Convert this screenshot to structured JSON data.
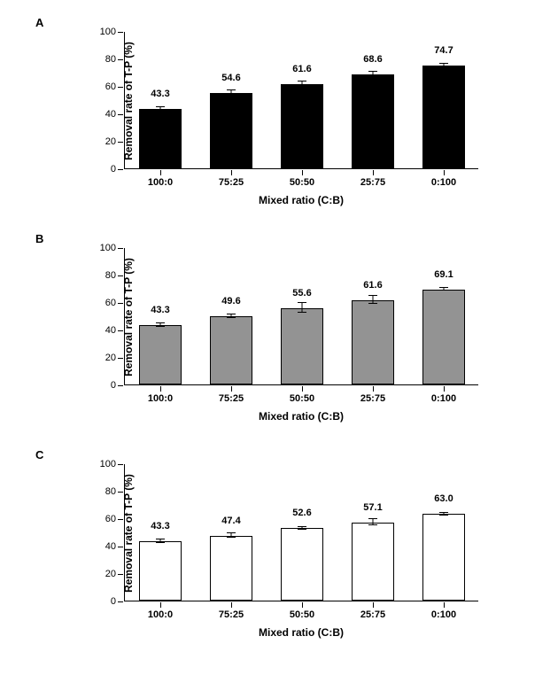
{
  "background_color": "#ffffff",
  "axis_color": "#000000",
  "font_family": "Arial",
  "panels": [
    {
      "label": "A",
      "type": "bar",
      "categories": [
        "100:0",
        "75:25",
        "50:50",
        "25:75",
        "0:100"
      ],
      "values": [
        43.3,
        54.6,
        61.6,
        68.6,
        74.7
      ],
      "errors": [
        1.5,
        2.5,
        1.5,
        2.0,
        1.5
      ],
      "bar_color": "#000000",
      "ylabel": "Removal rate of T-P (%)",
      "xlabel": "Mixed ratio (C:B)",
      "ylim": [
        0,
        100
      ],
      "ytick_step": 20,
      "bar_width": 0.6,
      "label_fontsize": 12,
      "tick_fontsize": 11,
      "value_fontsize": 11
    },
    {
      "label": "B",
      "type": "bar",
      "categories": [
        "100:0",
        "75:25",
        "50:50",
        "25:75",
        "0:100"
      ],
      "values": [
        43.3,
        49.6,
        55.6,
        61.6,
        69.1
      ],
      "errors": [
        1.5,
        1.5,
        3.5,
        3.0,
        1.0
      ],
      "bar_color": "#939393",
      "ylabel": "Removal rate of T-P (%)",
      "xlabel": "Mixed ratio (C:B)",
      "ylim": [
        0,
        100
      ],
      "ytick_step": 20,
      "bar_width": 0.6,
      "label_fontsize": 12,
      "tick_fontsize": 11,
      "value_fontsize": 11
    },
    {
      "label": "C",
      "type": "bar",
      "categories": [
        "100:0",
        "75:25",
        "50:50",
        "25:75",
        "0:100"
      ],
      "values": [
        43.3,
        47.4,
        52.6,
        57.1,
        63.0
      ],
      "errors": [
        1.5,
        1.5,
        1.0,
        2.0,
        1.0
      ],
      "bar_color": "#ffffff",
      "ylabel": "Removal rate of T-P (%)",
      "xlabel": "Mixed ratio (C:B)",
      "ylim": [
        0,
        100
      ],
      "ytick_step": 20,
      "bar_width": 0.6,
      "label_fontsize": 12,
      "tick_fontsize": 11,
      "value_fontsize": 11
    }
  ]
}
